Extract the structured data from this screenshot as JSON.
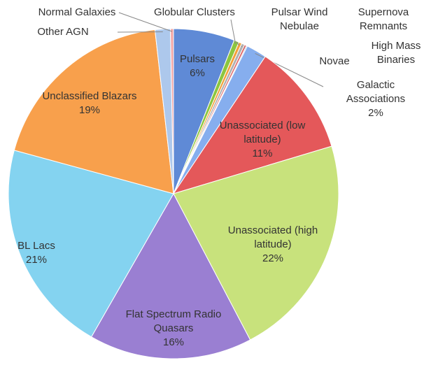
{
  "chart_data": {
    "type": "pie",
    "categories": [
      "Pulsars",
      "Globular Clusters",
      "Pulsar Wind Nebulae",
      "Supernova Remnants",
      "High Mass Binaries",
      "Novae",
      "Galactic Associations",
      "Unassociated (low latitude)",
      "Unassociated (high latitude)",
      "Flat Spectrum Radio Quasars",
      "BL Lacs",
      "Unclassified Blazars",
      "Other AGN",
      "Normal Galaxies"
    ],
    "values": [
      6,
      0.5,
      0.3,
      0.3,
      0.2,
      0.1,
      2,
      11,
      22,
      16,
      21,
      19,
      1.5,
      0.3
    ],
    "value_labels": [
      "6%",
      null,
      null,
      null,
      null,
      null,
      "2%",
      "11%",
      "22%",
      "16%",
      "21%",
      "19%",
      null,
      null
    ],
    "colors": [
      "#5f8ad6",
      "#8cc63f",
      "#f4a13a",
      "#b0b0b0",
      "#e06060",
      "#9bb4e0",
      "#86aeee",
      "#e4585a",
      "#c8e27c",
      "#9a7fd2",
      "#84d3f0",
      "#f8a04c",
      "#adc8ec",
      "#f3a6a6"
    ]
  }
}
